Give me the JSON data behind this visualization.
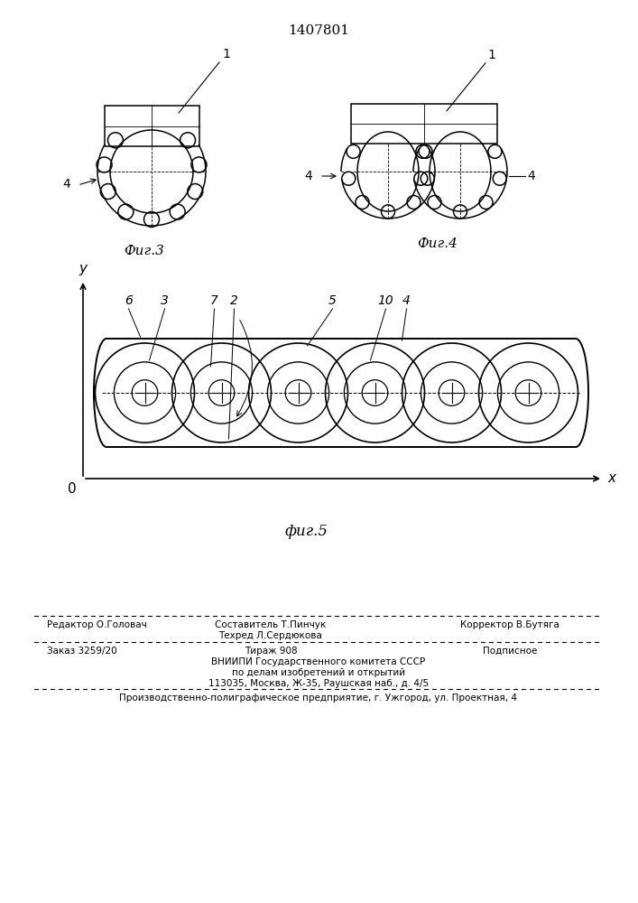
{
  "title": "1407801",
  "bg_color": "#ffffff",
  "line_color": "#000000",
  "fig3_caption": "Фиг.3",
  "fig4_caption": "Фиг.4",
  "fig5_caption": "фиг.5",
  "footer_editor": "Редактор О.Головач",
  "footer_sostavitel": "Составитель Т.Пинчук",
  "footer_tekhred": "Техред Л.Сердюкова",
  "footer_korrektor": "Корректор В.Бутяга",
  "footer_zakaz": "Заказ 3259/20",
  "footer_tirazh": "Тираж 908",
  "footer_podpisnoe": "Подписное",
  "footer_vniiipi1": "ВНИИПИ Государственного комитета СССР",
  "footer_vniiipi2": "по делам изобретений и открытий",
  "footer_vniiipi3": "113035, Москва, Ж-35, Раушская наб., д. 4/5",
  "footer_production": "Производственно-полиграфическое предприятие, г. Ужгород, ул. Проектная, 4"
}
